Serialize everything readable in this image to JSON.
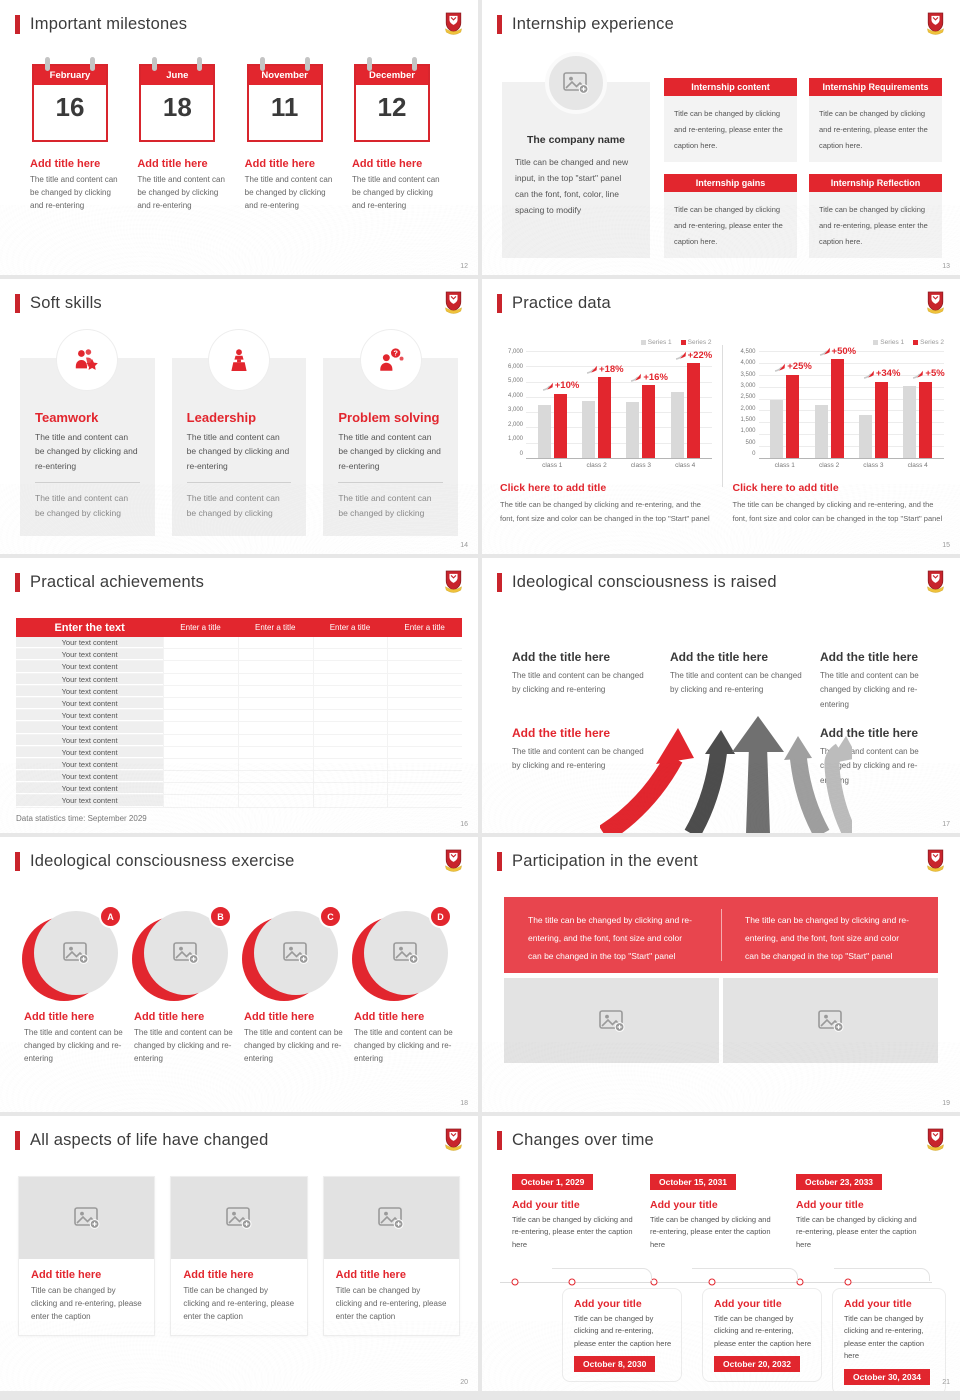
{
  "colors": {
    "accent_red": "#e2262e",
    "banner_red": "#e8454e",
    "bar_gray": "#d9d9d9",
    "card_gray": "#f0f0f0",
    "placeholder_gray": "#e3e3e3"
  },
  "logo": {
    "name": "school-crest"
  },
  "slides": [
    {
      "title": "Important milestones",
      "page": "12",
      "items": [
        {
          "month": "February",
          "day": "16",
          "title": "Add title here",
          "body": "The title and content can be changed by clicking and re-entering"
        },
        {
          "month": "June",
          "day": "18",
          "title": "Add title here",
          "body": "The title and content can be changed by clicking and re-entering"
        },
        {
          "month": "November",
          "day": "11",
          "title": "Add title here",
          "body": "The title and content can be changed by clicking and re-entering"
        },
        {
          "month": "December",
          "day": "12",
          "title": "Add title here",
          "body": "The title and content can be changed by clicking and re-entering"
        }
      ]
    },
    {
      "title": "Internship experience",
      "page": "13",
      "company_name": "The company name",
      "company_body": "Title can be changed and new input, in the top \"start\" panel can the font, font, color, line spacing to modify",
      "boxes": [
        {
          "header": "Internship content",
          "body": "Title can be changed by clicking and re-entering, please enter the caption here."
        },
        {
          "header": "Internship Requirements",
          "body": "Title can be changed by clicking and re-entering, please enter the caption here."
        },
        {
          "header": "Internship gains",
          "body": "Title can be changed by clicking and re-entering, please enter the caption here."
        },
        {
          "header": "Internship Reflection",
          "body": "Title can be changed by clicking and re-entering, please enter the caption here."
        }
      ]
    },
    {
      "title": "Soft skills",
      "page": "14",
      "cards": [
        {
          "icon": "teamwork-icon",
          "title": "Teamwork",
          "body": "The title and content can be changed by clicking and re-entering",
          "footer": "The title and content can be changed by clicking"
        },
        {
          "icon": "leadership-icon",
          "title": "Leadership",
          "body": "The title and content can be changed by clicking and re-entering",
          "footer": "The title and content can be changed by clicking"
        },
        {
          "icon": "problem-solving-icon",
          "title": "Problem solving",
          "body": "The title and content can be changed by clicking and re-entering",
          "footer": "The title and content can be changed by clicking"
        }
      ]
    },
    {
      "title": "Practice data",
      "page": "15",
      "charts": [
        {
          "legend": [
            "Series 1",
            "Series 2"
          ],
          "y_ticks": [
            "7,000",
            "6,000",
            "5,000",
            "4,000",
            "3,000",
            "2,000",
            "1,000",
            "0"
          ],
          "y_max": 7000,
          "categories": [
            "class 1",
            "class 2",
            "class 3",
            "class 4"
          ],
          "series": [
            {
              "name": "Series 1",
              "color": "#d9d9d9",
              "values": [
                3500,
                3750,
                3650,
                4300
              ]
            },
            {
              "name": "Series 2",
              "color": "#e2262e",
              "values": [
                4200,
                5300,
                4750,
                6200
              ]
            }
          ],
          "growth_labels": [
            "+10%",
            "+18%",
            "+16%",
            "+22%"
          ],
          "caption_title": "Click here to add title",
          "caption_body": "The title can be changed by clicking and re-entering, and the font, font size and color can be changed in the top \"Start\" panel"
        },
        {
          "legend": [
            "Series 1",
            "Series 2"
          ],
          "y_ticks": [
            "4,500",
            "4,000",
            "3,500",
            "3,000",
            "2,500",
            "2,000",
            "1,500",
            "1,000",
            "500",
            "0"
          ],
          "y_max": 4500,
          "categories": [
            "class 1",
            "class 2",
            "class 3",
            "class 4"
          ],
          "series": [
            {
              "name": "Series 1",
              "color": "#d9d9d9",
              "values": [
                2450,
                2250,
                1800,
                3050
              ]
            },
            {
              "name": "Series 2",
              "color": "#e2262e",
              "values": [
                3500,
                4150,
                3200,
                3200
              ]
            }
          ],
          "growth_labels": [
            "+25%",
            "+50%",
            "+34%",
            "+5%"
          ],
          "caption_title": "Click here to add title",
          "caption_body": "The title can be changed by clicking and re-entering, and the font, font size and color can be changed in the top \"Start\" panel"
        }
      ]
    },
    {
      "title": "Practical achievements",
      "page": "16",
      "table": {
        "headers": [
          "Enter the text",
          "Enter a title",
          "Enter a title",
          "Enter a title",
          "Enter a title"
        ],
        "rows": [
          "Your text content",
          "Your text content",
          "Your text content",
          "Your text content",
          "Your text content",
          "Your text content",
          "Your text content",
          "Your text content",
          "Your text content",
          "Your text content",
          "Your text content",
          "Your text content",
          "Your text content",
          "Your text content"
        ],
        "footer": "Data statistics time: September 2029"
      }
    },
    {
      "title": "Ideological consciousness is raised",
      "page": "17",
      "blocks": [
        {
          "title": "Add the title here",
          "body": "The title and content can be changed by clicking and re-entering"
        },
        {
          "title": "Add the title here",
          "body": "The title and content can be changed by clicking and re-entering"
        },
        {
          "title": "Add the title here",
          "body": "The title and content can be changed by clicking and re-entering"
        },
        {
          "title": "Add the title here",
          "body": "The title and content can be changed by clicking and re-entering"
        },
        {
          "title": "Add the title here",
          "body": "The title and content can be changed by clicking and re-entering"
        }
      ]
    },
    {
      "title": "Ideological consciousness exercise",
      "page": "18",
      "items": [
        {
          "badge": "A",
          "title": "Add title here",
          "body": "The title and content can be changed by clicking and re-entering"
        },
        {
          "badge": "B",
          "title": "Add title here",
          "body": "The title and content can be changed by clicking and re-entering"
        },
        {
          "badge": "C",
          "title": "Add title here",
          "body": "The title and content can be changed by clicking and re-entering"
        },
        {
          "badge": "D",
          "title": "Add title here",
          "body": "The title and content can be changed by clicking and re-entering"
        }
      ]
    },
    {
      "title": "Participation in the event",
      "page": "19",
      "banners": [
        "The title can be changed by clicking and re-entering, and the font, font size and color can be changed in the top \"Start\" panel",
        "The title can be changed by clicking and re-entering, and the font, font size and color can be changed in the top \"Start\" panel"
      ]
    },
    {
      "title": "All aspects of life have changed",
      "page": "20",
      "cards": [
        {
          "title": "Add title here",
          "body": "Title can be changed by clicking and re-entering, please enter the caption"
        },
        {
          "title": "Add title here",
          "body": "Title can be changed by clicking and re-entering, please enter the caption"
        },
        {
          "title": "Add title here",
          "body": "Title can be changed by clicking and re-entering, please enter the caption"
        }
      ]
    },
    {
      "title": "Changes over time",
      "page": "21",
      "top_items": [
        {
          "date": "October 1, 2029",
          "title": "Add your title",
          "body": "Title can be changed by clicking and re-entering, please enter the caption here"
        },
        {
          "date": "October 15, 2031",
          "title": "Add your title",
          "body": "Title can be changed by clicking and re-entering, please enter the caption here"
        },
        {
          "date": "October 23, 2033",
          "title": "Add your title",
          "body": "Title can be changed by clicking and re-entering, please enter the caption here"
        }
      ],
      "bottom_items": [
        {
          "date": "October 8, 2030",
          "title": "Add your title",
          "body": "Title can be changed by clicking and re-entering, please enter the caption here"
        },
        {
          "date": "October 20, 2032",
          "title": "Add your title",
          "body": "Title can be changed by clicking and re-entering, please enter the caption here"
        },
        {
          "date": "October 30, 2034",
          "title": "Add your title",
          "body": "Title can be changed by clicking and re-entering, please enter the caption here"
        }
      ]
    }
  ],
  "chart_data": [
    {
      "type": "bar",
      "title": "Click here to add title",
      "categories": [
        "class 1",
        "class 2",
        "class 3",
        "class 4"
      ],
      "series": [
        {
          "name": "Series 1",
          "values": [
            3500,
            3750,
            3650,
            4300
          ]
        },
        {
          "name": "Series 2",
          "values": [
            4200,
            5300,
            4750,
            6200
          ]
        }
      ],
      "annotations": [
        "+10%",
        "+18%",
        "+16%",
        "+22%"
      ],
      "ylim": [
        0,
        7000
      ],
      "legend_position": "top-right",
      "grid": true
    },
    {
      "type": "bar",
      "title": "Click here to add title",
      "categories": [
        "class 1",
        "class 2",
        "class 3",
        "class 4"
      ],
      "series": [
        {
          "name": "Series 1",
          "values": [
            2450,
            2250,
            1800,
            3050
          ]
        },
        {
          "name": "Series 2",
          "values": [
            3500,
            4150,
            3200,
            3200
          ]
        }
      ],
      "annotations": [
        "+25%",
        "+50%",
        "+34%",
        "+5%"
      ],
      "ylim": [
        0,
        4500
      ],
      "legend_position": "top-right",
      "grid": true
    }
  ]
}
